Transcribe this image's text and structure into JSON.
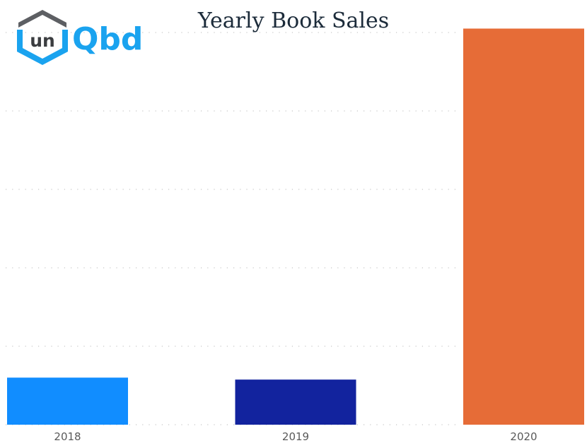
{
  "logo": {
    "inner_text": "un",
    "brand_text": "Qbd"
  },
  "colors": {
    "title": "#1c2b3a",
    "grid": "#c8c8c8",
    "tick_text": "#5a5a5a",
    "logo_blue": "#1aa3ef",
    "logo_dark": "#5d5f63"
  },
  "chart_data": {
    "type": "bar",
    "title": "Yearly Book Sales",
    "xlabel": "",
    "ylabel": "",
    "categories": [
      "2018",
      "2019",
      "2020"
    ],
    "values": [
      12,
      11.5,
      101
    ],
    "colors": [
      "#118dff",
      "#12239e",
      "#e66c37"
    ],
    "ylim": [
      0,
      100
    ],
    "grid": true,
    "legend": "none"
  }
}
